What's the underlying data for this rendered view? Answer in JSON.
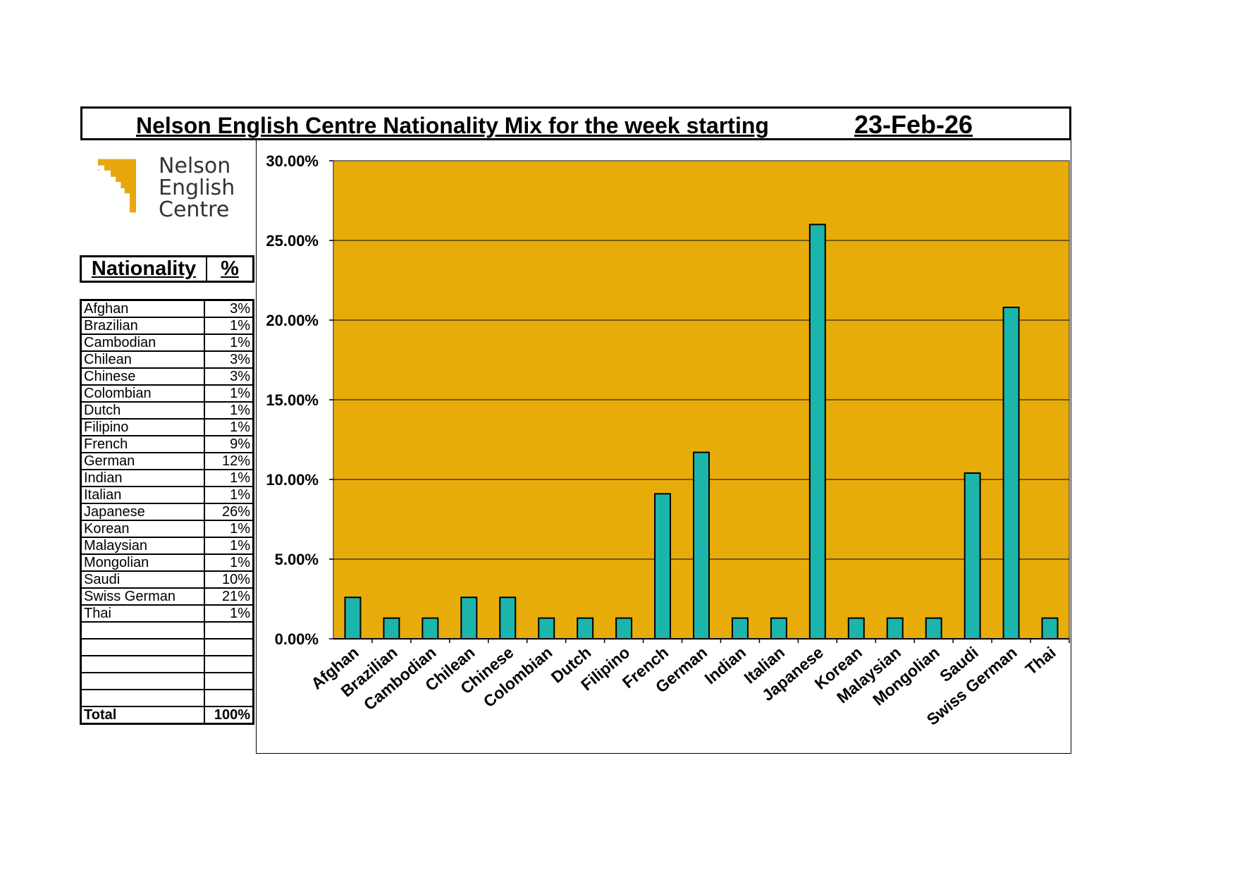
{
  "header": {
    "title": "Nelson English Centre Nationality Mix for the week starting",
    "date": "23-Feb-26"
  },
  "logo": {
    "line1": "Nelson",
    "line2": "English",
    "line3": "Centre",
    "brand_color": "#E8A60F"
  },
  "table": {
    "col_nationality": "Nationality",
    "col_percent": "%",
    "rows": [
      {
        "name": "Afghan",
        "pct": "3%"
      },
      {
        "name": "Brazilian",
        "pct": "1%"
      },
      {
        "name": "Cambodian",
        "pct": "1%"
      },
      {
        "name": "Chilean",
        "pct": "3%"
      },
      {
        "name": "Chinese",
        "pct": "3%"
      },
      {
        "name": "Colombian",
        "pct": "1%"
      },
      {
        "name": "Dutch",
        "pct": "1%"
      },
      {
        "name": "Filipino",
        "pct": "1%"
      },
      {
        "name": "French",
        "pct": "9%"
      },
      {
        "name": "German",
        "pct": "12%"
      },
      {
        "name": "Indian",
        "pct": "1%"
      },
      {
        "name": "Italian",
        "pct": "1%"
      },
      {
        "name": "Japanese",
        "pct": "26%"
      },
      {
        "name": "Korean",
        "pct": "1%"
      },
      {
        "name": "Malaysian",
        "pct": "1%"
      },
      {
        "name": "Mongolian",
        "pct": "1%"
      },
      {
        "name": "Saudi",
        "pct": "10%"
      },
      {
        "name": "Swiss German",
        "pct": "21%"
      },
      {
        "name": "Thai",
        "pct": "1%"
      }
    ],
    "total_label": "Total",
    "total_value": "100%"
  },
  "chart_data": {
    "type": "bar",
    "categories": [
      "Afghan",
      "Brazilian",
      "Cambodian",
      "Chilean",
      "Chinese",
      "Colombian",
      "Dutch",
      "Filipino",
      "French",
      "German",
      "Indian",
      "Italian",
      "Japanese",
      "Korean",
      "Malaysian",
      "Mongolian",
      "Saudi",
      "Swiss German",
      "Thai"
    ],
    "values": [
      2.6,
      1.3,
      1.3,
      2.6,
      2.6,
      1.3,
      1.3,
      1.3,
      9.1,
      11.7,
      1.3,
      1.3,
      26.0,
      1.3,
      1.3,
      1.3,
      10.4,
      20.8,
      1.3
    ],
    "ylim": [
      0,
      30
    ],
    "yticks": [
      "0.00%",
      "5.00%",
      "10.00%",
      "15.00%",
      "20.00%",
      "25.00%",
      "30.00%"
    ],
    "grid": true,
    "plot_color": "#E8AC0A",
    "bar_color": "#1CB5AC"
  }
}
